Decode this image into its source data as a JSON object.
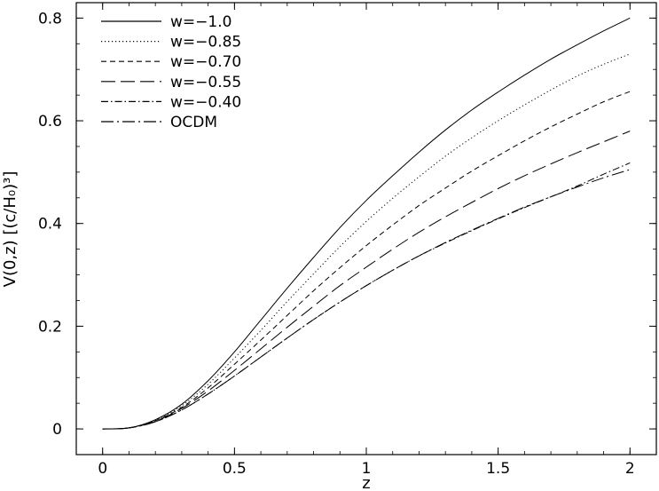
{
  "chart_data": {
    "type": "line",
    "xlabel": "z",
    "ylabel": "V(0,z) [(c/H₀)³]",
    "xlim": [
      -0.1,
      2.1
    ],
    "ylim": [
      -0.05,
      0.83
    ],
    "xticks": [
      0,
      0.5,
      1,
      1.5,
      2
    ],
    "xtick_labels": [
      "0",
      "0.5",
      "1",
      "1.5",
      "2"
    ],
    "yticks": [
      0,
      0.2,
      0.4,
      0.6,
      0.8
    ],
    "ytick_labels": [
      "0",
      "0.2",
      "0.4",
      "0.6",
      "0.8"
    ],
    "grid": false,
    "legend_position": "top-left",
    "x": [
      0,
      0.1,
      0.2,
      0.3,
      0.4,
      0.5,
      0.6,
      0.7,
      0.8,
      0.9,
      1.0,
      1.1,
      1.2,
      1.3,
      1.4,
      1.5,
      1.6,
      1.7,
      1.8,
      1.9,
      2.0
    ],
    "series": [
      {
        "name": "w=−1.0",
        "style": "solid",
        "values": [
          0,
          0.002,
          0.018,
          0.048,
          0.094,
          0.15,
          0.212,
          0.274,
          0.334,
          0.392,
          0.445,
          0.493,
          0.539,
          0.582,
          0.621,
          0.656,
          0.689,
          0.72,
          0.748,
          0.775,
          0.8
        ]
      },
      {
        "name": "w=−0.85",
        "style": "dotted",
        "values": [
          0,
          0.002,
          0.017,
          0.045,
          0.087,
          0.138,
          0.192,
          0.248,
          0.302,
          0.355,
          0.404,
          0.449,
          0.491,
          0.531,
          0.567,
          0.6,
          0.631,
          0.66,
          0.687,
          0.71,
          0.73
        ]
      },
      {
        "name": "w=−0.70",
        "style": "short-dash",
        "values": [
          0,
          0.002,
          0.016,
          0.042,
          0.08,
          0.126,
          0.173,
          0.221,
          0.269,
          0.314,
          0.357,
          0.397,
          0.435,
          0.469,
          0.502,
          0.532,
          0.561,
          0.588,
          0.613,
          0.637,
          0.657
        ]
      },
      {
        "name": "w=−0.55",
        "style": "long-dash",
        "values": [
          0,
          0.002,
          0.015,
          0.04,
          0.074,
          0.114,
          0.156,
          0.198,
          0.239,
          0.279,
          0.315,
          0.35,
          0.383,
          0.413,
          0.441,
          0.468,
          0.493,
          0.516,
          0.538,
          0.559,
          0.58
        ]
      },
      {
        "name": "w=−0.40",
        "style": "dash-dot",
        "values": [
          0,
          0.002,
          0.014,
          0.037,
          0.068,
          0.103,
          0.14,
          0.177,
          0.213,
          0.247,
          0.279,
          0.309,
          0.337,
          0.362,
          0.386,
          0.409,
          0.431,
          0.452,
          0.473,
          0.496,
          0.518
        ]
      },
      {
        "name": "OCDM",
        "style": "long-dash-dot",
        "values": [
          0,
          0.002,
          0.014,
          0.037,
          0.068,
          0.103,
          0.14,
          0.177,
          0.213,
          0.247,
          0.279,
          0.309,
          0.337,
          0.363,
          0.387,
          0.41,
          0.432,
          0.452,
          0.471,
          0.489,
          0.505
        ]
      }
    ]
  }
}
